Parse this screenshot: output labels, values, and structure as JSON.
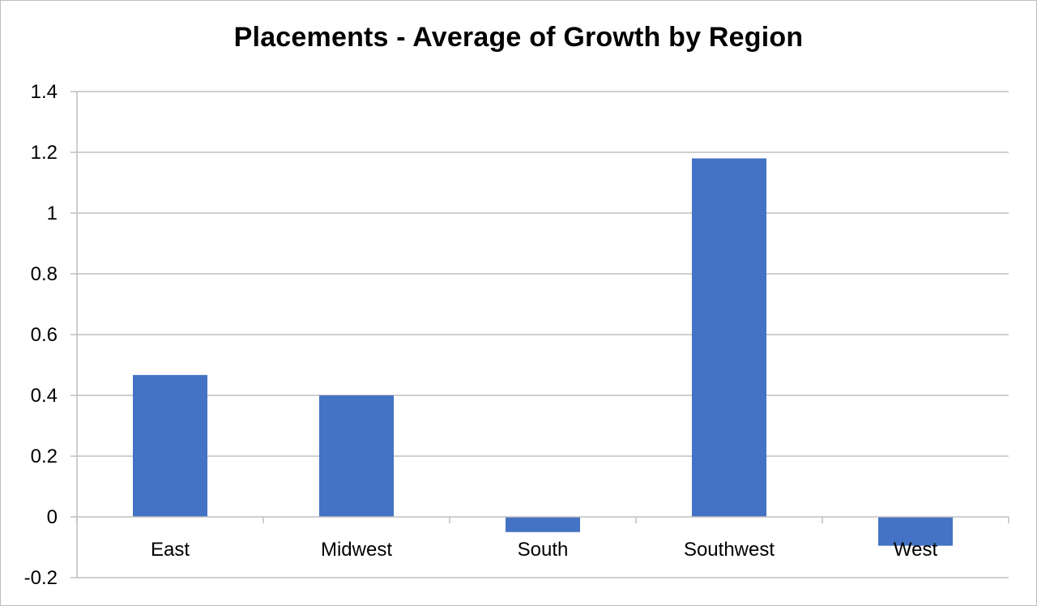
{
  "chart_data": {
    "type": "bar",
    "title": "Placements - Average of Growth by Region",
    "categories": [
      "East",
      "Midwest",
      "South",
      "Southwest",
      "West"
    ],
    "values": [
      0.467,
      0.4,
      -0.05,
      1.18,
      -0.095
    ],
    "xlabel": "",
    "ylabel": "",
    "ylim": [
      -0.2,
      1.4
    ],
    "yticks": [
      "1.4",
      "1.2",
      "1",
      "0.8",
      "0.6",
      "0.4",
      "0.2",
      "0",
      "-0.2"
    ],
    "grid": true,
    "legend": "none",
    "bar_color": "#4472C4",
    "grid_color": "#bfbfbf"
  }
}
